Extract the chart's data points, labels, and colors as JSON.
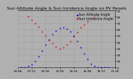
{
  "title": "Sun Altitude Angle & Sun Incidence Angle on PV Panels",
  "background_color": "#b0b0b0",
  "plot_bg_color": "#b0b0b0",
  "grid_color": "#888888",
  "ylim": [
    0,
    90
  ],
  "xlim": [
    0,
    28
  ],
  "altitude_color": "#0000dd",
  "incidence_color": "#dd0000",
  "y_ticks": [
    0,
    10,
    20,
    30,
    40,
    50,
    60,
    70,
    80,
    90
  ],
  "x_tick_labels": [
    "04:48",
    "07:12",
    "09:36",
    "12:00",
    "14:24",
    "16:48",
    "19:12",
    "21:36"
  ],
  "altitude_x": [
    1,
    2,
    3,
    4,
    5,
    6,
    7,
    8,
    9,
    10,
    11,
    12,
    13,
    14,
    15,
    16,
    17,
    18,
    19,
    20,
    21,
    22,
    23,
    24,
    25,
    26
  ],
  "altitude_y": [
    0,
    0,
    2,
    5,
    10,
    18,
    26,
    36,
    44,
    52,
    58,
    62,
    63,
    61,
    57,
    50,
    42,
    32,
    22,
    13,
    6,
    2,
    0,
    0,
    0,
    0
  ],
  "incidence_x": [
    3,
    4,
    5,
    6,
    7,
    8,
    9,
    10,
    11,
    12,
    13,
    14,
    15,
    16,
    17,
    18,
    19,
    20,
    21,
    22,
    23
  ],
  "incidence_y": [
    80,
    75,
    70,
    64,
    57,
    50,
    44,
    38,
    33,
    30,
    32,
    36,
    42,
    49,
    56,
    63,
    68,
    73,
    77,
    80,
    82
  ],
  "legend_altitude": "Sun Altitude Angle",
  "legend_incidence": "Sun Incidence Angle",
  "title_fontsize": 4.5,
  "tick_fontsize": 3.2,
  "legend_fontsize": 3.5,
  "marker_size": 0.8
}
